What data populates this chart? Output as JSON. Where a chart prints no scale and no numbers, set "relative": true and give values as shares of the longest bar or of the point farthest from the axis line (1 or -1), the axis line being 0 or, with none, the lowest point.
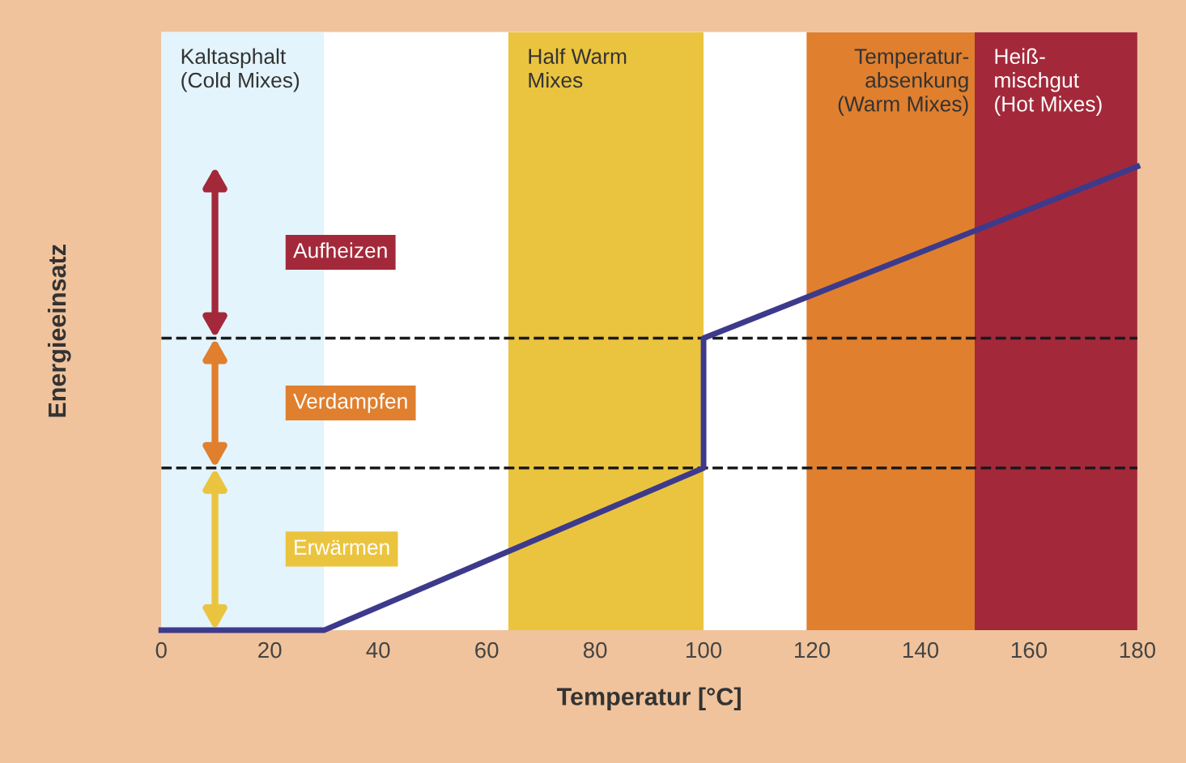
{
  "chart_data": {
    "type": "line",
    "relative": true,
    "xlabel": "Temperatur [°C]",
    "ylabel": "Energieeinsatz",
    "xlim": [
      0,
      180
    ],
    "xticks": [
      0,
      20,
      40,
      60,
      80,
      100,
      120,
      140,
      160,
      180
    ],
    "grid": false,
    "marker": "none",
    "line_style": "solid",
    "series": [
      {
        "color": "#3d3a8c",
        "x": [
          0,
          30,
          100,
          100,
          180
        ],
        "values": [
          0,
          0,
          0.35,
          0.63,
          1
        ]
      }
    ],
    "bands": [
      {
        "axis": "x",
        "from": 0,
        "to": 30,
        "label": "Kaltasphalt\n(Cold Mixes)",
        "color": "#e3f4fc"
      },
      {
        "axis": "x",
        "from": 64,
        "to": 100,
        "label": "Half Warm\nMixes",
        "color": "#ebc43f"
      },
      {
        "axis": "x",
        "from": 119,
        "to": 150,
        "label": "Temperatur-\nabsenkung\n(Warm Mixes)",
        "color": "#e07f2e"
      },
      {
        "axis": "x",
        "from": 150,
        "to": 180,
        "label": "Heiß-\nmischgut\n(Hot Mixes)",
        "color": "#a3293a"
      }
    ],
    "ref_lines": [
      {
        "axis": "y",
        "value": 0.35,
        "color": "#1a1a1a",
        "line_style": "dashed"
      },
      {
        "axis": "y",
        "value": 0.63,
        "color": "#1a1a1a",
        "line_style": "dashed"
      }
    ],
    "annotations": [
      "Aufheizen",
      "Verdampfen",
      "Erwärmen"
    ]
  }
}
